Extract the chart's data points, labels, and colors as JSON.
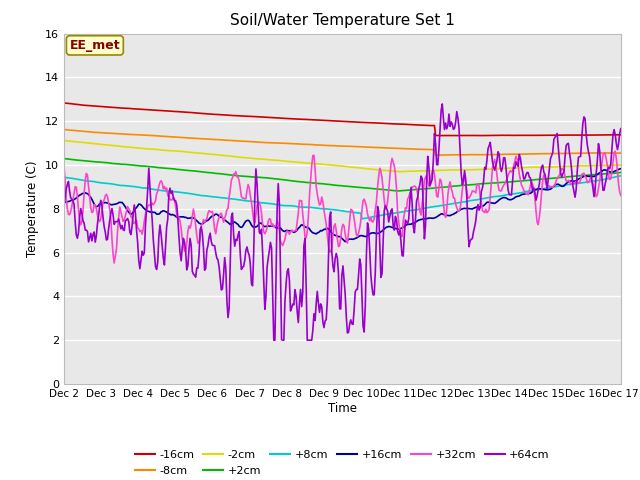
{
  "title": "Soil/Water Temperature Set 1",
  "xlabel": "Time",
  "ylabel": "Temperature (C)",
  "ylim": [
    0,
    16
  ],
  "yticks": [
    0,
    2,
    4,
    6,
    8,
    10,
    12,
    14,
    16
  ],
  "x_labels": [
    "Dec 2",
    "Dec 3",
    "Dec 4",
    "Dec 5",
    "Dec 6",
    "Dec 7",
    "Dec 8",
    "Dec 9",
    "Dec 10",
    "Dec 11",
    "Dec 12",
    "Dec 13",
    "Dec 14",
    "Dec 15",
    "Dec 16",
    "Dec 17"
  ],
  "annotation_text": "EE_met",
  "plot_bg": "#e8e8e8",
  "fig_bg": "#ffffff",
  "grid_color": "#ffffff",
  "series": [
    {
      "label": "-16cm",
      "color": "#cc0000"
    },
    {
      "label": "-8cm",
      "color": "#ff8800"
    },
    {
      "label": "-2cm",
      "color": "#dddd00"
    },
    {
      "label": "+2cm",
      "color": "#00bb00"
    },
    {
      "label": "+8cm",
      "color": "#00cccc"
    },
    {
      "label": "+16cm",
      "color": "#000099"
    },
    {
      "label": "+32cm",
      "color": "#ff44cc"
    },
    {
      "label": "+64cm",
      "color": "#9900cc"
    }
  ],
  "lw": 1.2
}
